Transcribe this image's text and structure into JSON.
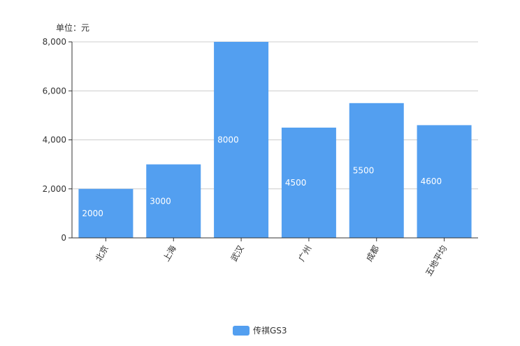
{
  "chart_data": {
    "type": "bar",
    "unit_label": "单位：元",
    "categories": [
      "北京",
      "上海",
      "武汉",
      "广州",
      "成都",
      "五地平均"
    ],
    "series": [
      {
        "name": "传祺GS3",
        "values": [
          2000,
          3000,
          8000,
          4500,
          5500,
          4600
        ],
        "color": "#539ff0"
      }
    ],
    "data_labels": [
      "2000",
      "3000",
      "8000",
      "4500",
      "5500",
      "4600"
    ],
    "y_ticks": [
      0,
      2000,
      4000,
      6000,
      8000
    ],
    "y_tick_labels": [
      "0",
      "2,000",
      "4,000",
      "6,000",
      "8,000"
    ],
    "ylim": [
      0,
      8000
    ],
    "grid": true,
    "legend_position": "bottom-center",
    "colors": {
      "grid": "#cccccc",
      "axis": "#333333"
    }
  }
}
